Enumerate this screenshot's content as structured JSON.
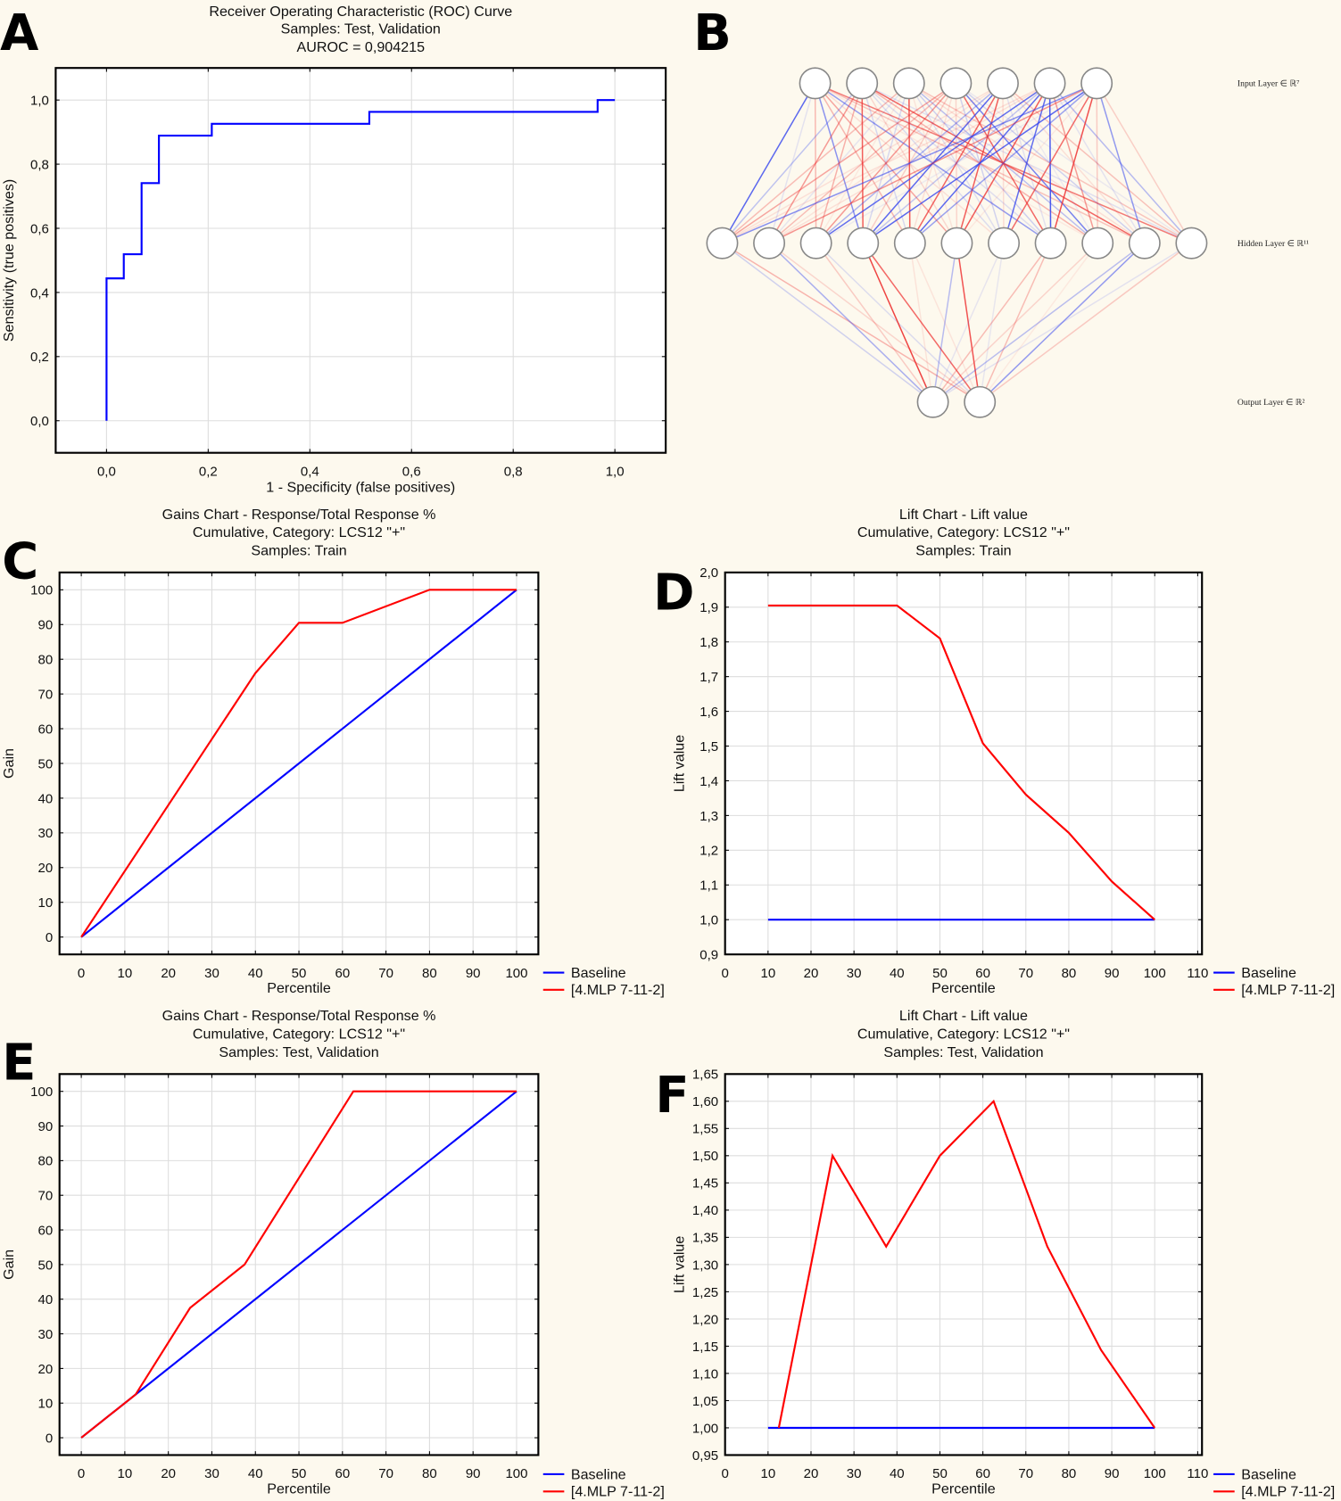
{
  "panels": {
    "A": "A",
    "B": "B",
    "C": "C",
    "D": "D",
    "E": "E",
    "F": "F"
  },
  "colors": {
    "background": "#fdf9ee",
    "baseline": "#0000ff",
    "model": "#ff0000",
    "roc": "#0000ff",
    "grid": "#dddddd"
  },
  "network": {
    "layers": [
      {
        "label": "Input Layer ∈ ℝ⁷",
        "size": 7
      },
      {
        "label": "Hidden Layer ∈ ℝ¹¹",
        "size": 11
      },
      {
        "label": "Output Layer ∈ ℝ²",
        "size": 2
      }
    ]
  },
  "chart_data": [
    {
      "id": "A",
      "type": "line",
      "title": [
        "Receiver Operating Characteristic (ROC) Curve",
        "Samples: Test, Validation",
        "AUROC = 0,904215"
      ],
      "xlabel": "1 - Specificity (false positives)",
      "ylabel": "Sensitivity (true positives)",
      "xlim": [
        -0.1,
        1.1
      ],
      "ylim": [
        -0.1,
        1.1
      ],
      "xticks": [
        "0,0",
        "0,2",
        "0,4",
        "0,6",
        "0,8",
        "1,0"
      ],
      "xtick_values": [
        0,
        0.2,
        0.4,
        0.6,
        0.8,
        1.0
      ],
      "yticks": [
        "0,0",
        "0,2",
        "0,4",
        "0,6",
        "0,8",
        "1,0"
      ],
      "ytick_values": [
        0,
        0.2,
        0.4,
        0.6,
        0.8,
        1.0
      ],
      "grid": true,
      "series": [
        {
          "name": "ROC",
          "color": "#0000ff",
          "x": [
            0,
            0,
            0.034,
            0.034,
            0.069,
            0.069,
            0.103,
            0.103,
            0.207,
            0.207,
            0.517,
            0.517,
            0.966,
            0.966,
            1.0
          ],
          "y": [
            0,
            0.444,
            0.444,
            0.519,
            0.519,
            0.741,
            0.741,
            0.889,
            0.889,
            0.926,
            0.926,
            0.963,
            0.963,
            1.0,
            1.0
          ]
        }
      ]
    },
    {
      "id": "C",
      "type": "line",
      "title": [
        "Gains Chart - Response/Total Response %",
        "Cumulative, Category: LCS12 \"+\"",
        "Samples: Train"
      ],
      "xlabel": "Percentile",
      "ylabel": "Gain",
      "xlim": [
        -5,
        105
      ],
      "ylim": [
        -5,
        105
      ],
      "xticks": [
        "0",
        "10",
        "20",
        "30",
        "40",
        "50",
        "60",
        "70",
        "80",
        "90",
        "100"
      ],
      "xtick_values": [
        0,
        10,
        20,
        30,
        40,
        50,
        60,
        70,
        80,
        90,
        100
      ],
      "yticks": [
        "0",
        "10",
        "20",
        "30",
        "40",
        "50",
        "60",
        "70",
        "80",
        "90",
        "100"
      ],
      "ytick_values": [
        0,
        10,
        20,
        30,
        40,
        50,
        60,
        70,
        80,
        90,
        100
      ],
      "grid": true,
      "legend": "bottom-right-outside",
      "series": [
        {
          "name": "Baseline",
          "color": "#0000ff",
          "x": [
            0,
            100
          ],
          "y": [
            0,
            100
          ]
        },
        {
          "name": "[4.MLP 7-11-2]",
          "color": "#ff0000",
          "x": [
            0,
            40,
            50,
            60,
            80,
            100
          ],
          "y": [
            0,
            76,
            90.5,
            90.5,
            100,
            100
          ]
        }
      ]
    },
    {
      "id": "D",
      "type": "line",
      "title": [
        "Lift Chart - Lift value",
        "Cumulative, Category: LCS12 \"+\"",
        "Samples: Train"
      ],
      "xlabel": "Percentile",
      "ylabel": "Lift value",
      "xlim": [
        0,
        111
      ],
      "ylim": [
        0.9,
        2.0
      ],
      "xticks": [
        "0",
        "10",
        "20",
        "30",
        "40",
        "50",
        "60",
        "70",
        "80",
        "90",
        "100",
        "110"
      ],
      "xtick_values": [
        0,
        10,
        20,
        30,
        40,
        50,
        60,
        70,
        80,
        90,
        100,
        110
      ],
      "yticks": [
        "0,9",
        "1,0",
        "1,1",
        "1,2",
        "1,3",
        "1,4",
        "1,5",
        "1,6",
        "1,7",
        "1,8",
        "1,9",
        "2,0"
      ],
      "ytick_values": [
        0.9,
        1.0,
        1.1,
        1.2,
        1.3,
        1.4,
        1.5,
        1.6,
        1.7,
        1.8,
        1.9,
        2.0
      ],
      "grid": true,
      "legend": "bottom-right-outside",
      "series": [
        {
          "name": "Baseline",
          "color": "#0000ff",
          "x": [
            10,
            100
          ],
          "y": [
            1.0,
            1.0
          ]
        },
        {
          "name": "[4.MLP 7-11-2]",
          "color": "#ff0000",
          "x": [
            10,
            40,
            50,
            60,
            70,
            80,
            90,
            100
          ],
          "y": [
            1.905,
            1.905,
            1.81,
            1.508,
            1.36,
            1.25,
            1.11,
            1.0
          ]
        }
      ]
    },
    {
      "id": "E",
      "type": "line",
      "title": [
        "Gains Chart - Response/Total Response %",
        "Cumulative, Category: LCS12 \"+\"",
        "Samples: Test, Validation"
      ],
      "xlabel": "Percentile",
      "ylabel": "Gain",
      "xlim": [
        -5,
        105
      ],
      "ylim": [
        -5,
        105
      ],
      "xticks": [
        "0",
        "10",
        "20",
        "30",
        "40",
        "50",
        "60",
        "70",
        "80",
        "90",
        "100"
      ],
      "xtick_values": [
        0,
        10,
        20,
        30,
        40,
        50,
        60,
        70,
        80,
        90,
        100
      ],
      "yticks": [
        "0",
        "10",
        "20",
        "30",
        "40",
        "50",
        "60",
        "70",
        "80",
        "90",
        "100"
      ],
      "ytick_values": [
        0,
        10,
        20,
        30,
        40,
        50,
        60,
        70,
        80,
        90,
        100
      ],
      "grid": true,
      "legend": "bottom-right-outside",
      "series": [
        {
          "name": "Baseline",
          "color": "#0000ff",
          "x": [
            0,
            100
          ],
          "y": [
            0,
            100
          ]
        },
        {
          "name": "[4.MLP 7-11-2]",
          "color": "#ff0000",
          "x": [
            0,
            12.5,
            25,
            37.5,
            62.5,
            100
          ],
          "y": [
            0,
            12.5,
            37.5,
            50,
            100,
            100
          ]
        }
      ]
    },
    {
      "id": "F",
      "type": "line",
      "title": [
        "Lift Chart - Lift value",
        "Cumulative, Category: LCS12 \"+\"",
        "Samples: Test, Validation"
      ],
      "xlabel": "Percentile",
      "ylabel": "Lift value",
      "xlim": [
        0,
        111
      ],
      "ylim": [
        0.95,
        1.65
      ],
      "xticks": [
        "0",
        "10",
        "20",
        "30",
        "40",
        "50",
        "60",
        "70",
        "80",
        "90",
        "100",
        "110"
      ],
      "xtick_values": [
        0,
        10,
        20,
        30,
        40,
        50,
        60,
        70,
        80,
        90,
        100,
        110
      ],
      "yticks": [
        "0,95",
        "1,00",
        "1,05",
        "1,10",
        "1,15",
        "1,20",
        "1,25",
        "1,30",
        "1,35",
        "1,40",
        "1,45",
        "1,50",
        "1,55",
        "1,60",
        "1,65"
      ],
      "ytick_values": [
        0.95,
        1.0,
        1.05,
        1.1,
        1.15,
        1.2,
        1.25,
        1.3,
        1.35,
        1.4,
        1.45,
        1.5,
        1.55,
        1.6,
        1.65
      ],
      "grid": true,
      "legend": "bottom-right-outside",
      "series": [
        {
          "name": "Baseline",
          "color": "#0000ff",
          "x": [
            10,
            100
          ],
          "y": [
            1.0,
            1.0
          ]
        },
        {
          "name": "[4.MLP 7-11-2]",
          "color": "#ff0000",
          "x": [
            12.5,
            25,
            37.5,
            50,
            62.5,
            75,
            87.5,
            100
          ],
          "y": [
            1.0,
            1.5,
            1.333,
            1.5,
            1.6,
            1.333,
            1.143,
            1.0
          ]
        }
      ]
    }
  ]
}
